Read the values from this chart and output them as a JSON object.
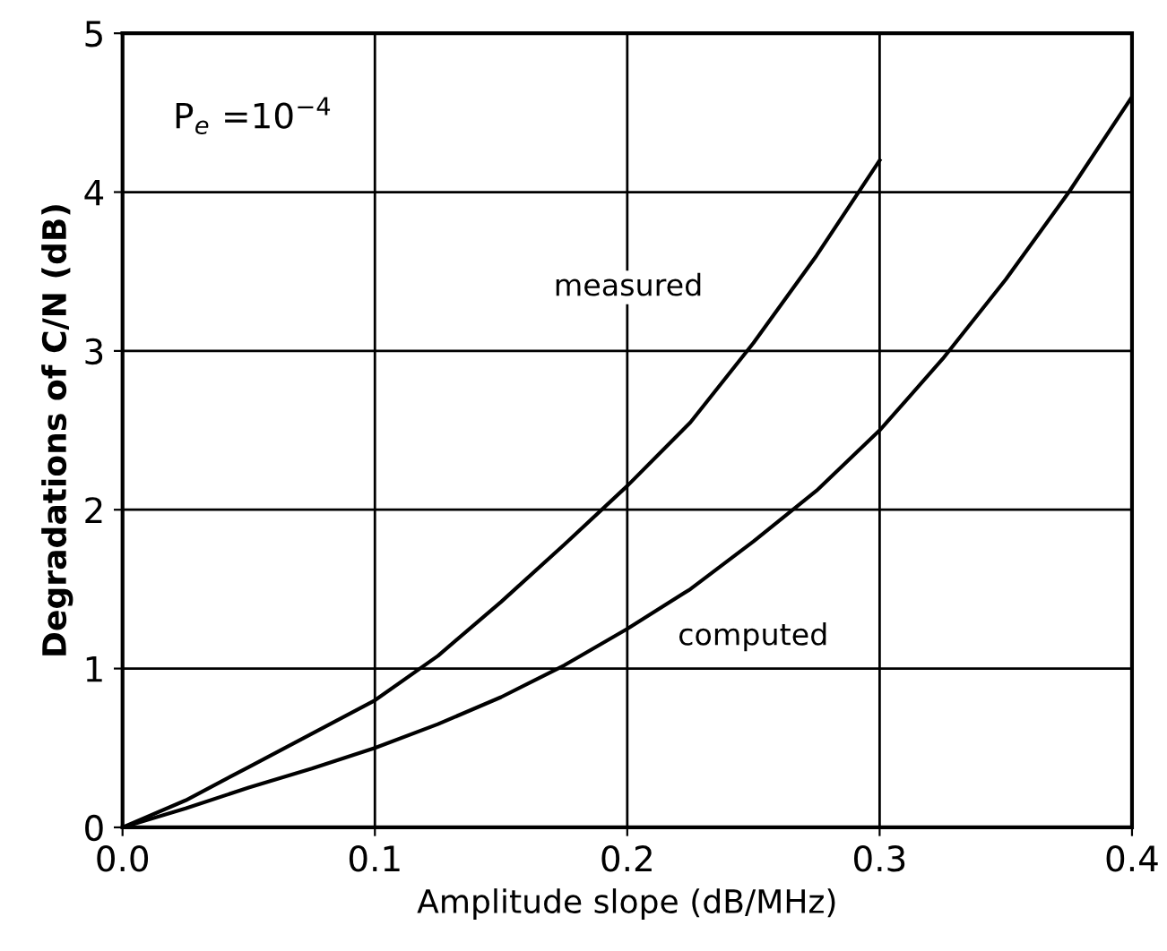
{
  "chart_data": {
    "type": "line",
    "xlabel": "Amplitude slope (dB/MHz)",
    "ylabel": "Degradations of C/N (dB)",
    "annotations": [
      "P$_{e}$ =10$^{−4}$"
    ],
    "series": [
      {
        "name": "measured",
        "color": "#000000",
        "x": [
          0,
          0.025,
          0.05,
          0.075,
          0.1,
          0.125,
          0.15,
          0.175,
          0.2,
          0.225,
          0.25,
          0.275,
          0.3
        ],
        "values": [
          0,
          0.17,
          0.38,
          0.59,
          0.8,
          1.08,
          1.42,
          1.78,
          2.15,
          2.55,
          3.05,
          3.6,
          4.2
        ]
      },
      {
        "name": "computed",
        "color": "#000000",
        "x": [
          0,
          0.025,
          0.05,
          0.075,
          0.1,
          0.125,
          0.15,
          0.175,
          0.2,
          0.225,
          0.25,
          0.275,
          0.3,
          0.325,
          0.35,
          0.375,
          0.4
        ],
        "values": [
          0,
          0.12,
          0.25,
          0.37,
          0.5,
          0.65,
          0.82,
          1.02,
          1.25,
          1.5,
          1.8,
          2.12,
          2.5,
          2.95,
          3.45,
          4.0,
          4.6
        ]
      }
    ],
    "xlim": [
      0,
      0.4
    ],
    "ylim": [
      0,
      5
    ],
    "xticks": [
      {
        "value": 0,
        "label": "0.0"
      },
      0.1,
      0.2,
      0.3,
      0.4
    ],
    "yticks": [
      0,
      1,
      2,
      3,
      4,
      5
    ],
    "grid": true,
    "marker": "none",
    "line_style": "solid",
    "legend": false
  }
}
